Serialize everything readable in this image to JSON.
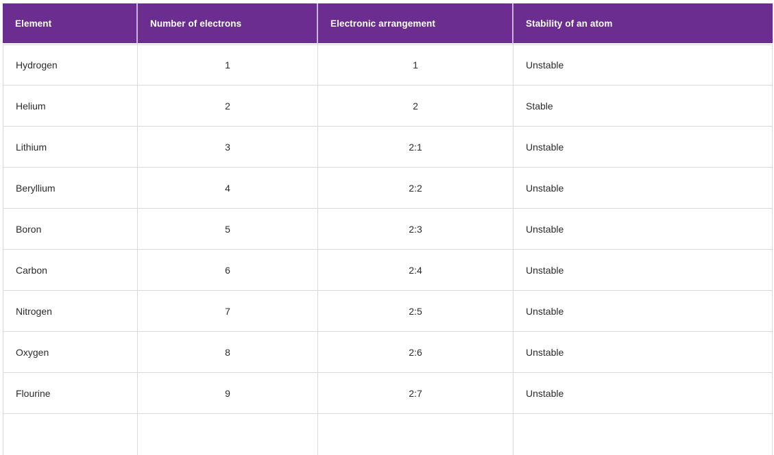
{
  "table": {
    "columns": [
      {
        "label": "Element"
      },
      {
        "label": "Number of electrons"
      },
      {
        "label": "Electronic arrangement"
      },
      {
        "label": "Stability of an atom"
      }
    ],
    "rows": [
      {
        "element": "Hydrogen",
        "electrons": "1",
        "arrangement": "1",
        "stability": "Unstable"
      },
      {
        "element": "Helium",
        "electrons": "2",
        "arrangement": "2",
        "stability": "Stable"
      },
      {
        "element": "Lithium",
        "electrons": "3",
        "arrangement": "2:1",
        "stability": "Unstable"
      },
      {
        "element": "Beryllium",
        "electrons": "4",
        "arrangement": "2:2",
        "stability": "Unstable"
      },
      {
        "element": "Boron",
        "electrons": "5",
        "arrangement": "2:3",
        "stability": "Unstable"
      },
      {
        "element": "Carbon",
        "electrons": "6",
        "arrangement": "2:4",
        "stability": "Unstable"
      },
      {
        "element": "Nitrogen",
        "electrons": "7",
        "arrangement": "2:5",
        "stability": "Unstable"
      },
      {
        "element": "Oxygen",
        "electrons": "8",
        "arrangement": "2:6",
        "stability": "Unstable"
      },
      {
        "element": "Flourine",
        "electrons": "9",
        "arrangement": "2:7",
        "stability": "Unstable"
      }
    ]
  },
  "colors": {
    "header_background": "#6C2D90",
    "header_text": "#FFFFFF",
    "header_divider": "#CBB5DE",
    "grid_line": "#D9D9D9",
    "body_text": "#2B2B2B"
  }
}
